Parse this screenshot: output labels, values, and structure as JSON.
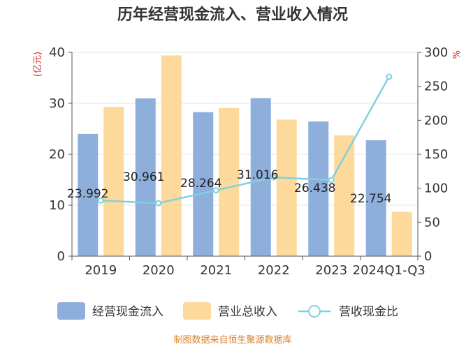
{
  "title": "历年经营现金流入、营业收入情况",
  "source_note": "制图数据来自恒生聚源数据库",
  "colors": {
    "cash_bar": "#8EAEDC",
    "revenue_bar": "#FDD99B",
    "ratio_line": "#7FD1DC",
    "left_unit": "#E0251F",
    "source": "#D9822B",
    "axis": "#555555",
    "grid": "#E6E6E6"
  },
  "chart_data": {
    "type": "bar",
    "title": "历年经营现金流入、营业收入情况",
    "categories": [
      "2019",
      "2020",
      "2021",
      "2022",
      "2023",
      "2024Q1-Q3"
    ],
    "series": [
      {
        "name": "经营现金流入",
        "type": "bar",
        "axis": "left",
        "values": [
          23.992,
          30.961,
          28.264,
          31.016,
          26.438,
          22.754
        ],
        "data_labels": [
          "23.992",
          "30.961",
          "28.264",
          "31.016",
          "26.438",
          "22.754"
        ]
      },
      {
        "name": "营业总收入",
        "type": "bar",
        "axis": "left",
        "values": [
          29.3,
          39.4,
          29.1,
          26.8,
          23.7,
          8.7
        ]
      },
      {
        "name": "营收现金比",
        "type": "line",
        "axis": "right",
        "values": [
          82,
          78,
          97,
          116,
          112,
          264
        ]
      }
    ],
    "y_left": {
      "unit": "(亿元)",
      "min": 0,
      "max": 40,
      "ticks": [
        0,
        10,
        20,
        30,
        40
      ]
    },
    "y_right": {
      "unit": "%",
      "min": 0,
      "max": 300,
      "ticks": [
        0,
        50,
        100,
        150,
        200,
        250,
        300
      ]
    },
    "grid": true,
    "legend_position": "bottom"
  }
}
